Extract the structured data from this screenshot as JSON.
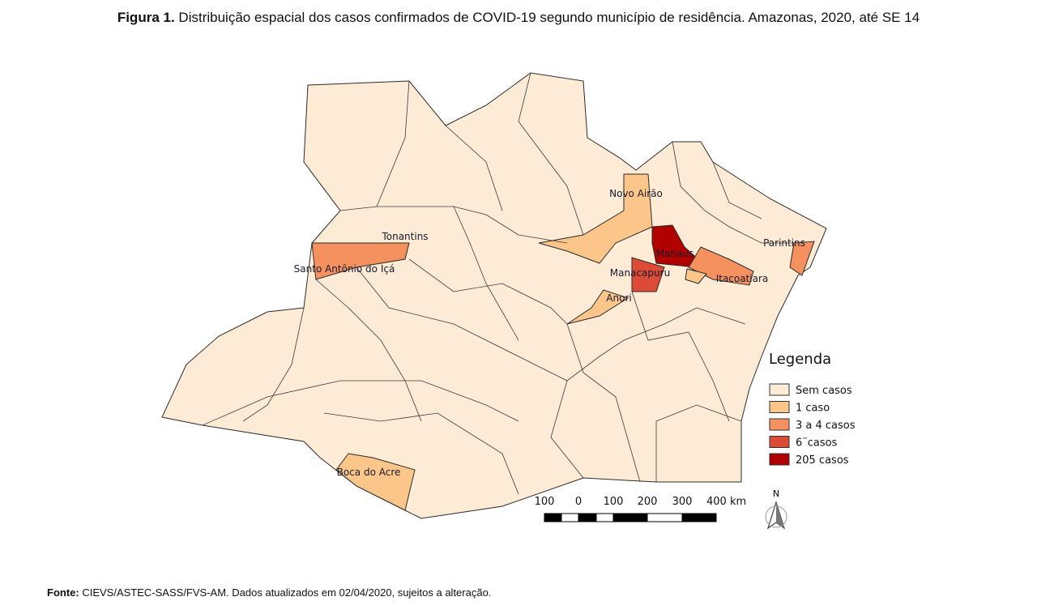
{
  "title": {
    "label": "Figura 1.",
    "text": "Distribuição espacial dos casos confirmados de COVID-19 segundo município de residência. Amazonas, 2020, até SE 14"
  },
  "map": {
    "labels": [
      "Novo Airão",
      "Tonantins",
      "Parintins",
      "Manaus",
      "Santo Antônio do Içá",
      "Manacapuru",
      "Itacoatiara",
      "Anori",
      "Boca do Acre"
    ]
  },
  "legend": {
    "title": "Legenda",
    "items": [
      {
        "label": "Sem casos",
        "color": "#fdebd5"
      },
      {
        "label": "1 caso",
        "color": "#fcc68b"
      },
      {
        "label": "3 a 4 casos",
        "color": "#f5915e"
      },
      {
        "label": "6¨casos",
        "color": "#dc4b35"
      },
      {
        "label": "205 casos",
        "color": "#b00000"
      }
    ]
  },
  "scale": {
    "labels": [
      "100",
      "0",
      "100",
      "200",
      "300",
      "400 km"
    ]
  },
  "north": "N",
  "footer": {
    "label": "Fonte:",
    "text": "CIEVS/ASTEC-SASS/FVS-AM. Dados atualizados em 02/04/2020, sujeitos a alteração."
  }
}
